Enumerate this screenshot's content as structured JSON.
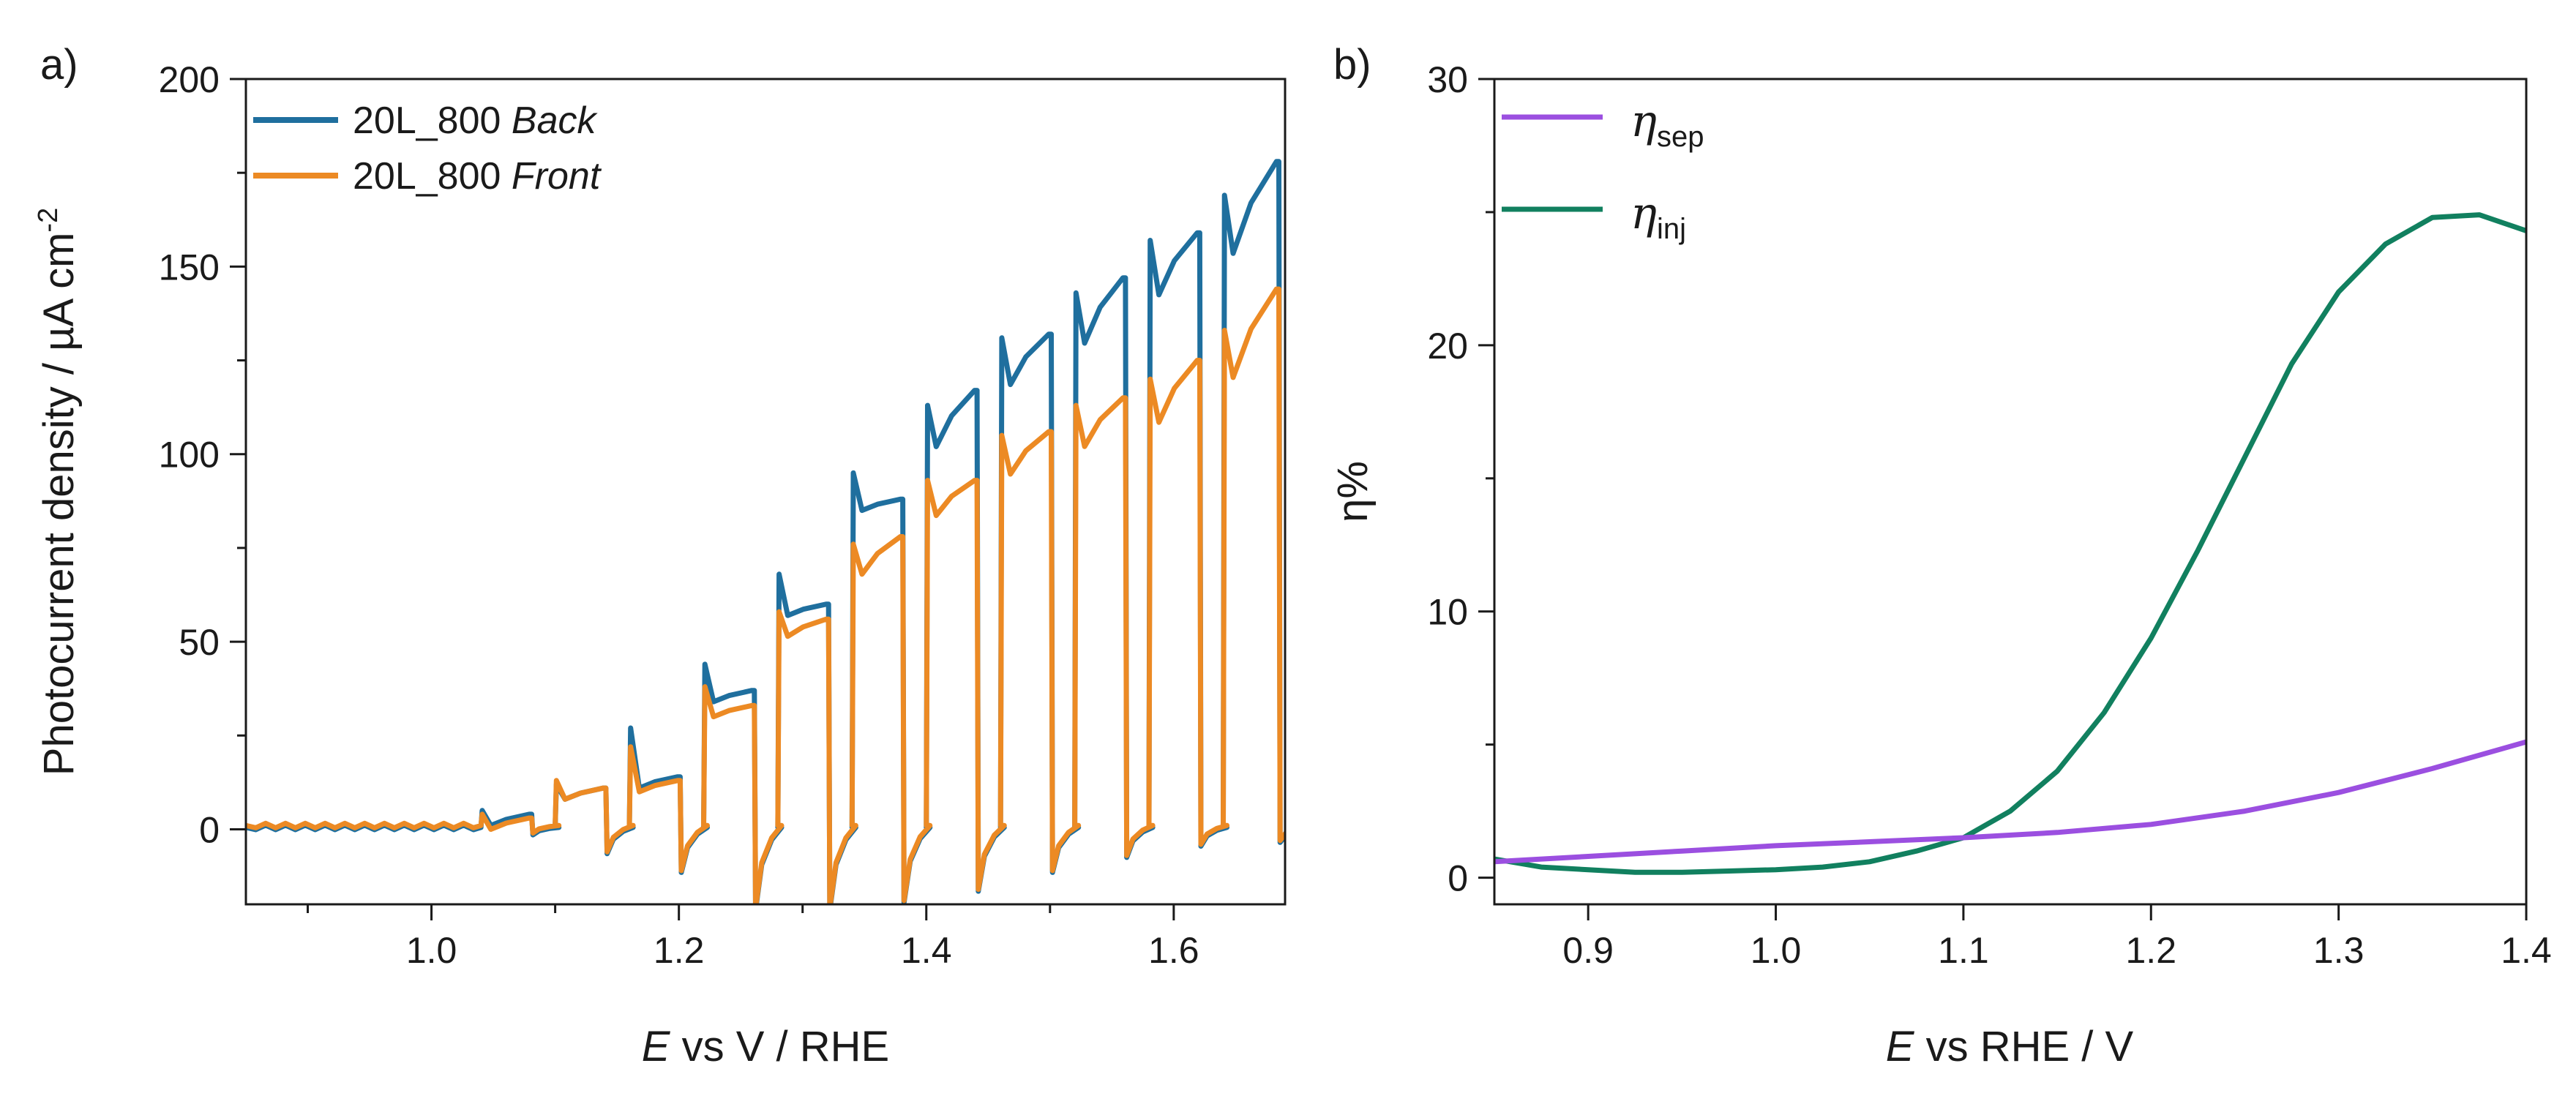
{
  "colors": {
    "back": "#1f6f9e",
    "front": "#ec8a24",
    "sep": "#9b4fe0",
    "inj": "#11805f"
  },
  "chart_data": [
    {
      "panel": "a)",
      "type": "line",
      "title": "",
      "xlabel_italic": "E",
      "xlabel_rest": " vs V / RHE",
      "ylabel": "Photocurrent density / µA cm",
      "ylabel_sup": "-2",
      "xlim": [
        0.85,
        1.69
      ],
      "ylim": [
        -20,
        200
      ],
      "xticks": [
        1.0,
        1.2,
        1.4,
        1.6
      ],
      "xtick_labels": [
        "1.0",
        "1.2",
        "1.4",
        "1.6"
      ],
      "xminor": [
        0.9,
        1.1,
        1.3,
        1.5
      ],
      "yticks": [
        0,
        50,
        100,
        150,
        200
      ],
      "ytick_labels": [
        "0",
        "50",
        "100",
        "150",
        "200"
      ],
      "yminor": [
        25,
        75,
        125,
        175
      ],
      "grid": false,
      "legend_position": "top-left",
      "chopped": {
        "on_edges": [
          1.04,
          1.1,
          1.16,
          1.22,
          1.28,
          1.34,
          1.4,
          1.46,
          1.52,
          1.58,
          1.64
        ],
        "on_duration": 0.041,
        "last_on_end": 1.685,
        "dark_spike_depth": [
          2,
          7,
          12,
          22,
          22,
          20,
          17,
          12,
          8,
          5,
          4
        ]
      },
      "series": [
        {
          "name": "20L_800",
          "name_italic": "Back",
          "color_key": "back",
          "dark_level": 0.5,
          "on_peak": [
            5,
            12,
            27,
            44,
            68,
            95,
            113,
            131,
            143,
            157,
            169
          ],
          "on_end": [
            4,
            11,
            14,
            37,
            60,
            88,
            117,
            132,
            147,
            159,
            178
          ]
        },
        {
          "name": "20L_800",
          "name_italic": "Front",
          "color_key": "front",
          "dark_level": 1.0,
          "on_peak": [
            4,
            13,
            22,
            38,
            58,
            76,
            93,
            105,
            113,
            120,
            133
          ],
          "on_end": [
            3,
            11,
            13,
            33,
            56,
            78,
            93,
            106,
            115,
            125,
            144
          ]
        }
      ]
    },
    {
      "panel": "b)",
      "type": "line",
      "title": "",
      "xlabel_italic": "E",
      "xlabel_rest": " vs RHE / V",
      "ylabel": "η%",
      "xlim": [
        0.85,
        1.4
      ],
      "ylim": [
        -1,
        30
      ],
      "xticks": [
        0.9,
        1.0,
        1.1,
        1.2,
        1.3,
        1.4
      ],
      "xtick_labels": [
        "0.9",
        "1.0",
        "1.1",
        "1.2",
        "1.3",
        "1.4"
      ],
      "yticks": [
        0,
        10,
        20,
        30
      ],
      "ytick_labels": [
        "0",
        "10",
        "20",
        "30"
      ],
      "yminor": [
        5,
        15,
        25
      ],
      "grid": false,
      "legend_position": "top-left",
      "series": [
        {
          "symbol": "η",
          "subscript": "sep",
          "color_key": "sep",
          "x": [
            0.85,
            0.9,
            0.95,
            1.0,
            1.05,
            1.1,
            1.15,
            1.2,
            1.25,
            1.3,
            1.35,
            1.4
          ],
          "y": [
            0.6,
            0.8,
            1.0,
            1.2,
            1.35,
            1.5,
            1.7,
            2.0,
            2.5,
            3.2,
            4.1,
            5.1
          ]
        },
        {
          "symbol": "η",
          "subscript": "inj",
          "color_key": "inj",
          "x": [
            0.85,
            0.875,
            0.9,
            0.925,
            0.95,
            0.975,
            1.0,
            1.025,
            1.05,
            1.075,
            1.1,
            1.125,
            1.15,
            1.175,
            1.2,
            1.225,
            1.25,
            1.275,
            1.3,
            1.325,
            1.35,
            1.375,
            1.4
          ],
          "y": [
            0.7,
            0.4,
            0.3,
            0.2,
            0.2,
            0.25,
            0.3,
            0.4,
            0.6,
            1.0,
            1.5,
            2.5,
            4.0,
            6.2,
            9.0,
            12.3,
            15.8,
            19.3,
            22.0,
            23.8,
            24.8,
            24.9,
            24.3
          ]
        }
      ]
    }
  ]
}
